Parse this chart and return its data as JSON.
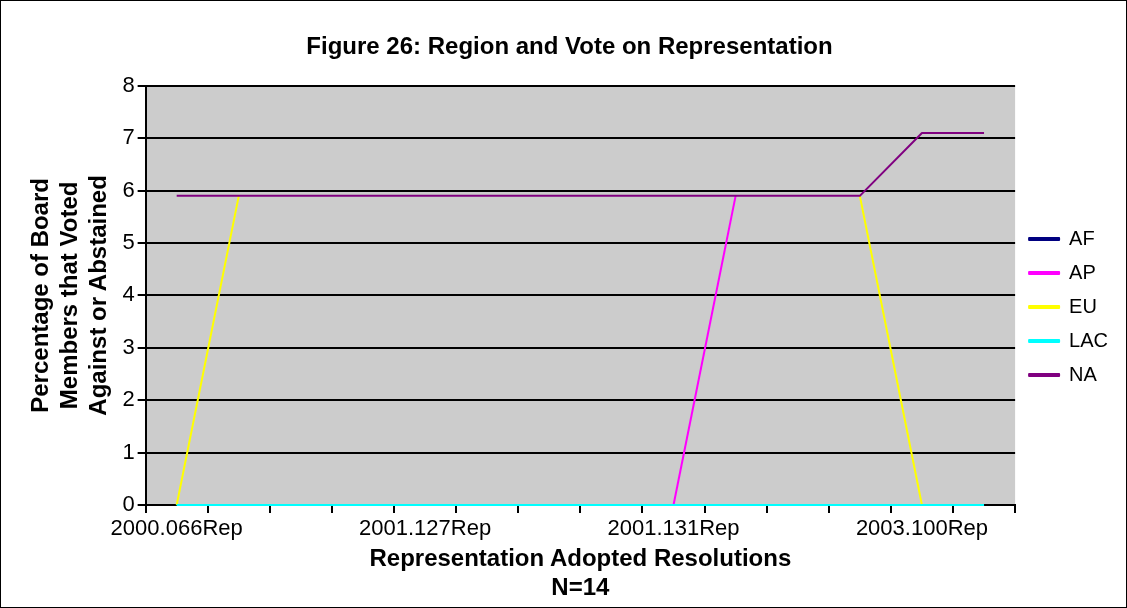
{
  "chart_data": {
    "type": "line",
    "title": "Figure 26: Region and Vote on Representation",
    "xlabel": "Representation Adopted Resolutions\nN=14",
    "ylabel": "Percentage of Board\nMembers that Voted\nAgainst or Abstained",
    "categories": [
      "2000.066Rep",
      null,
      null,
      null,
      "2001.127Rep",
      null,
      null,
      null,
      "2001.131Rep",
      null,
      null,
      null,
      "2003.100Rep",
      null
    ],
    "series": [
      {
        "name": "AF",
        "color": "#000080",
        "values": [
          null,
          null,
          null,
          null,
          null,
          null,
          null,
          null,
          null,
          null,
          null,
          null,
          null,
          null
        ]
      },
      {
        "name": "AP",
        "color": "#ff00ff",
        "values": [
          null,
          null,
          null,
          null,
          null,
          null,
          null,
          null,
          0,
          5.9,
          null,
          null,
          null,
          null
        ]
      },
      {
        "name": "EU",
        "color": "#ffff00",
        "values": [
          0,
          5.9,
          null,
          null,
          null,
          null,
          null,
          null,
          null,
          null,
          null,
          5.9,
          0,
          null
        ]
      },
      {
        "name": "LAC",
        "color": "#00ffff",
        "values": [
          0,
          0,
          0,
          0,
          0,
          0,
          0,
          0,
          0,
          0,
          0,
          0,
          0,
          0
        ]
      },
      {
        "name": "NA",
        "color": "#800080",
        "values": [
          5.9,
          5.9,
          5.9,
          5.9,
          5.9,
          5.9,
          5.9,
          5.9,
          5.9,
          5.9,
          5.9,
          5.9,
          7.1,
          7.1
        ]
      }
    ],
    "ylim": [
      0,
      8
    ],
    "yticks": [
      0,
      1,
      2,
      3,
      4,
      5,
      6,
      7,
      8
    ],
    "grid": "y",
    "legend": "right",
    "marker": "none",
    "line_style": "solid"
  }
}
